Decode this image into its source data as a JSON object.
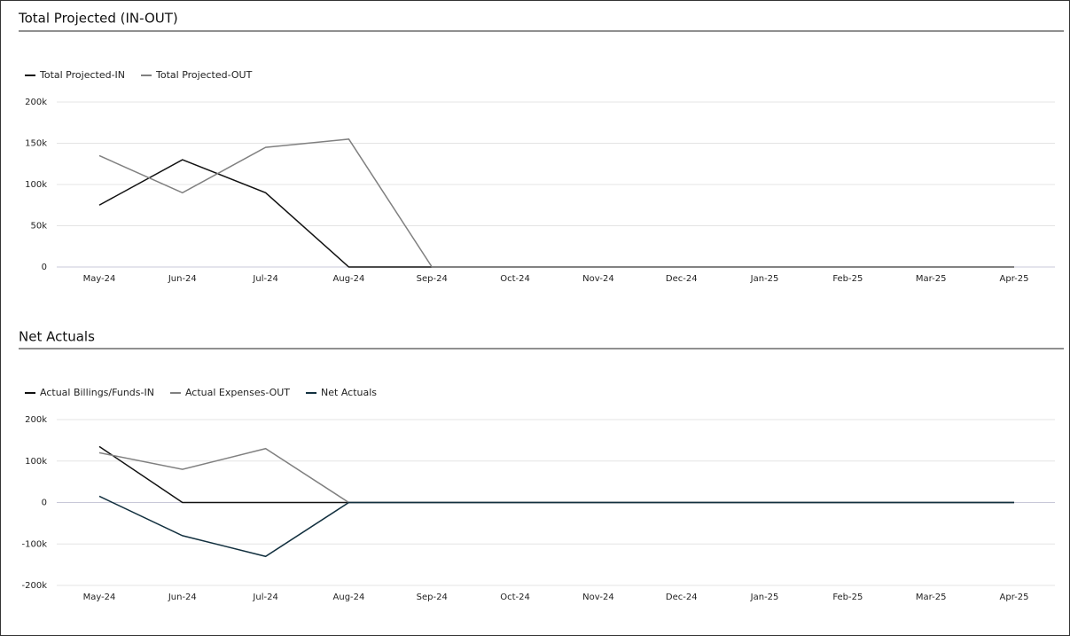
{
  "chart_data": [
    {
      "type": "line",
      "title": "Total Projected (IN-OUT)",
      "categories": [
        "May-24",
        "Jun-24",
        "Jul-24",
        "Aug-24",
        "Sep-24",
        "Oct-24",
        "Nov-24",
        "Dec-24",
        "Jan-25",
        "Feb-25",
        "Mar-25",
        "Apr-25"
      ],
      "series": [
        {
          "name": "Total Projected-IN",
          "color": "#111111",
          "values": [
            75000,
            130000,
            90000,
            0,
            0,
            0,
            0,
            0,
            0,
            0,
            0,
            0
          ]
        },
        {
          "name": "Total Projected-OUT",
          "color": "#808080",
          "values": [
            135000,
            90000,
            145000,
            155000,
            0,
            0,
            0,
            0,
            0,
            0,
            0,
            0
          ]
        }
      ],
      "ylim": [
        0,
        200000
      ],
      "yticks": [
        {
          "value": 0,
          "label": "0"
        },
        {
          "value": 50000,
          "label": "50k"
        },
        {
          "value": 100000,
          "label": "100k"
        },
        {
          "value": 150000,
          "label": "150k"
        },
        {
          "value": 200000,
          "label": "200k"
        }
      ],
      "grid": true,
      "legend": "top-left"
    },
    {
      "type": "line",
      "title": "Net Actuals",
      "categories": [
        "May-24",
        "Jun-24",
        "Jul-24",
        "Aug-24",
        "Sep-24",
        "Oct-24",
        "Nov-24",
        "Dec-24",
        "Jan-25",
        "Feb-25",
        "Mar-25",
        "Apr-25"
      ],
      "series": [
        {
          "name": "Actual Billings/Funds-IN",
          "color": "#111111",
          "values": [
            135000,
            0,
            0,
            0,
            0,
            0,
            0,
            0,
            0,
            0,
            0,
            0
          ]
        },
        {
          "name": "Actual Expenses-OUT",
          "color": "#808080",
          "values": [
            120000,
            80000,
            130000,
            0,
            0,
            0,
            0,
            0,
            0,
            0,
            0,
            0
          ]
        },
        {
          "name": "Net Actuals",
          "color": "#12303f",
          "values": [
            15000,
            -80000,
            -130000,
            0,
            0,
            0,
            0,
            0,
            0,
            0,
            0,
            0
          ]
        }
      ],
      "ylim": [
        -200000,
        200000
      ],
      "yticks": [
        {
          "value": -200000,
          "label": "-200k"
        },
        {
          "value": -100000,
          "label": "-100k"
        },
        {
          "value": 0,
          "label": "0"
        },
        {
          "value": 100000,
          "label": "100k"
        },
        {
          "value": 200000,
          "label": "200k"
        }
      ],
      "grid": true,
      "legend": "top-left"
    }
  ]
}
